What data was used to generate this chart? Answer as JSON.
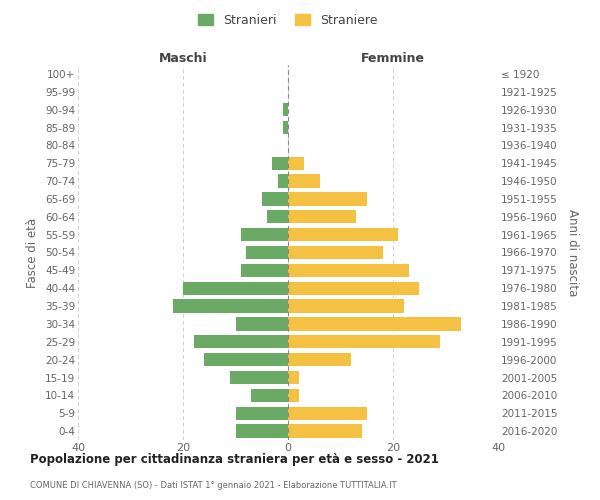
{
  "age_groups": [
    "100+",
    "95-99",
    "90-94",
    "85-89",
    "80-84",
    "75-79",
    "70-74",
    "65-69",
    "60-64",
    "55-59",
    "50-54",
    "45-49",
    "40-44",
    "35-39",
    "30-34",
    "25-29",
    "20-24",
    "15-19",
    "10-14",
    "5-9",
    "0-4"
  ],
  "birth_years": [
    "≤ 1920",
    "1921-1925",
    "1926-1930",
    "1931-1935",
    "1936-1940",
    "1941-1945",
    "1946-1950",
    "1951-1955",
    "1956-1960",
    "1961-1965",
    "1966-1970",
    "1971-1975",
    "1976-1980",
    "1981-1985",
    "1986-1990",
    "1991-1995",
    "1996-2000",
    "2001-2005",
    "2006-2010",
    "2011-2015",
    "2016-2020"
  ],
  "males": [
    0,
    0,
    1,
    1,
    0,
    3,
    2,
    5,
    4,
    9,
    8,
    9,
    20,
    22,
    10,
    18,
    16,
    11,
    7,
    10,
    10
  ],
  "females": [
    0,
    0,
    0,
    0,
    0,
    3,
    6,
    15,
    13,
    21,
    18,
    23,
    25,
    22,
    33,
    29,
    12,
    2,
    2,
    15,
    14
  ],
  "male_color": "#6aaa64",
  "female_color": "#f5c142",
  "male_label": "Stranieri",
  "female_label": "Straniere",
  "xlim": 40,
  "title": "Popolazione per cittadinanza straniera per età e sesso - 2021",
  "subtitle": "COMUNE DI CHIAVENNA (SO) - Dati ISTAT 1° gennaio 2021 - Elaborazione TUTTITALIA.IT",
  "xlabel_left": "Maschi",
  "xlabel_right": "Femmine",
  "ylabel_left": "Fasce di età",
  "ylabel_right": "Anni di nascita",
  "background_color": "#ffffff",
  "grid_color": "#d0d0d0"
}
